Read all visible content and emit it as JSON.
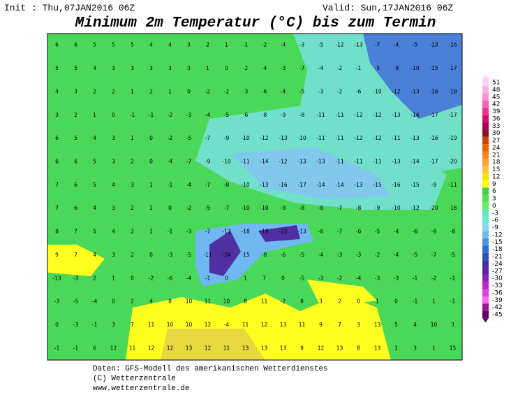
{
  "header": {
    "init": "Init : Thu,07JAN2016 06Z",
    "valid": "Valid: Sun,17JAN2016 06Z",
    "title": "Minimum 2m Temperatur (°C) bis zum Termin"
  },
  "map": {
    "rows": [
      [
        6,
        6,
        5,
        5,
        5,
        4,
        4,
        3,
        2,
        1,
        -1,
        -2,
        -4,
        -3,
        -5,
        -12,
        -13,
        -7,
        -4,
        -5,
        -13,
        -16
      ],
      [
        5,
        5,
        4,
        3,
        3,
        3,
        3,
        3,
        1,
        0,
        -2,
        -4,
        -3,
        -7,
        -4,
        -2,
        -1,
        -5,
        -8,
        -10,
        -15,
        -17
      ],
      [
        4,
        3,
        2,
        2,
        1,
        2,
        1,
        0,
        -2,
        -2,
        -3,
        -6,
        -4,
        -5,
        -3,
        -2,
        -6,
        -10,
        -12,
        -13,
        -16,
        -18
      ],
      [
        3,
        2,
        1,
        0,
        -1,
        -1,
        -2,
        -3,
        -4,
        -5,
        -6,
        -8,
        -9,
        -8,
        -11,
        -11,
        -12,
        -12,
        -13,
        -16,
        -17,
        -17
      ],
      [
        6,
        5,
        4,
        3,
        1,
        0,
        -2,
        -5,
        -7,
        -9,
        -10,
        -12,
        -13,
        -10,
        -11,
        -11,
        -12,
        -12,
        -11,
        -13,
        -16,
        -19
      ],
      [
        6,
        6,
        5,
        3,
        2,
        0,
        -4,
        -7,
        -9,
        -10,
        -11,
        -14,
        -12,
        -13,
        -13,
        -11,
        -11,
        -11,
        -13,
        -14,
        -17,
        -20
      ],
      [
        7,
        6,
        5,
        4,
        3,
        1,
        -1,
        -4,
        -7,
        -8,
        -10,
        -13,
        -16,
        -17,
        -14,
        -14,
        -13,
        -15,
        -16,
        -15,
        -9,
        -11
      ],
      [
        7,
        6,
        4,
        3,
        2,
        1,
        0,
        -2,
        -5,
        -7,
        -10,
        -10,
        -9,
        -8,
        -8,
        -7,
        -8,
        -9,
        -10,
        -12,
        -20,
        -16
      ],
      [
        8,
        7,
        5,
        4,
        2,
        1,
        -1,
        -3,
        -7,
        -12,
        -18,
        -19,
        -22,
        -13,
        -8,
        -7,
        -6,
        -5,
        -4,
        -6,
        -9,
        -8
      ],
      [
        9,
        7,
        4,
        3,
        2,
        0,
        -3,
        -5,
        -11,
        -24,
        -15,
        -8,
        -6,
        -5,
        -4,
        -3,
        -3,
        -2,
        -4,
        -5,
        -7,
        -5
      ],
      [
        -13,
        -3,
        2,
        1,
        0,
        -2,
        -6,
        -4,
        -1,
        0,
        1,
        7,
        0,
        -5,
        -3,
        -2,
        -4,
        -3,
        -3,
        -1,
        -2,
        -1
      ],
      [
        -3,
        -5,
        -4,
        0,
        2,
        4,
        8,
        10,
        11,
        10,
        8,
        11,
        -2,
        8,
        3,
        2,
        0,
        1,
        0,
        -1,
        1,
        -1
      ],
      [
        0,
        -3,
        -1,
        3,
        7,
        11,
        10,
        10,
        12,
        -4,
        11,
        12,
        13,
        11,
        9,
        7,
        3,
        13,
        5,
        4,
        10,
        3
      ],
      [
        -1,
        -1,
        6,
        12,
        11,
        12,
        12,
        13,
        12,
        11,
        13,
        13,
        13,
        9,
        12,
        13,
        8,
        13,
        1,
        3,
        1,
        15
      ]
    ]
  },
  "colorbar": {
    "labels": [
      51,
      48,
      45,
      42,
      39,
      36,
      33,
      30,
      27,
      24,
      21,
      18,
      15,
      12,
      9,
      6,
      3,
      0,
      -3,
      -6,
      -9,
      -12,
      -15,
      -18,
      -21,
      -24,
      -27,
      -30,
      -33,
      -36,
      -39,
      -42,
      -45
    ],
    "colors": [
      "#ffd0f0",
      "#ffb0e0",
      "#ff90d0",
      "#ff60b0",
      "#f03090",
      "#d01070",
      "#b00050",
      "#901030",
      "#d04000",
      "#f06000",
      "#ff8020",
      "#ffa030",
      "#ffc040",
      "#ffe000",
      "#ffff00",
      "#40d040",
      "#50e050",
      "#60f060",
      "#60e8c0",
      "#70e8e0",
      "#80d8f0",
      "#70b8f0",
      "#5090e0",
      "#3070d0",
      "#3050b0",
      "#4030a0",
      "#6020b0",
      "#9020c0",
      "#c020d0",
      "#e040e0",
      "#ff60f0",
      "#a01090",
      "#600060"
    ]
  },
  "footer": {
    "line1": "Daten: GFS-Modell des amerikanischen Wetterdienstes",
    "line2": "(C) Wetterzentrale",
    "line3": "www.wetterzentrale.de"
  }
}
